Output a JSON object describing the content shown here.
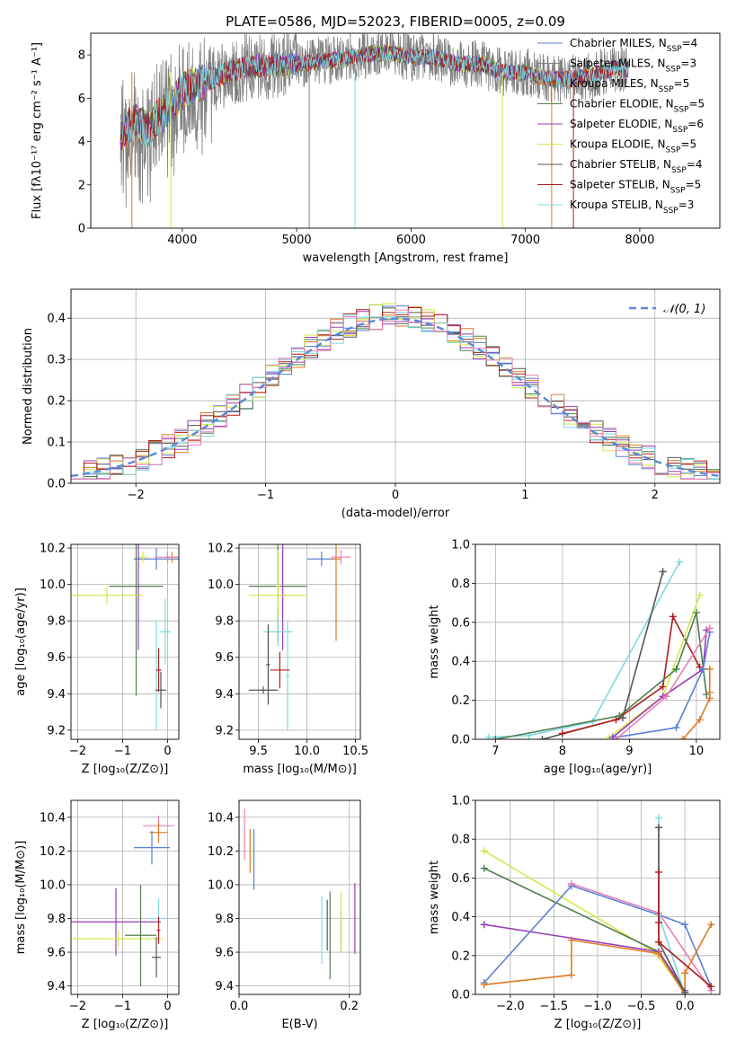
{
  "figure_title": "PLATE=0586, MJD=52023, FIBERID=0005, z=0.09",
  "palette": {
    "Chabrier MILES": "#5b7fd6",
    "Salpeter MILES": "#808080",
    "Kroupa MILES": "#e07b25",
    "Chabrier ELODIE": "#4f7f4f",
    "Salpeter ELODIE": "#9a3cb8",
    "Kroupa ELODIE": "#d2ea4a",
    "Chabrier STELIB": "#555555",
    "Salpeter STELIB": "#b01c1c",
    "Kroupa STELIB": "#7fd8e2",
    "extra_pink": "#e77fb5",
    "normal_curve": "#5b8ad6"
  },
  "chart_data": [
    {
      "id": "spectrum",
      "type": "line",
      "xlabel": "wavelength [Angstrom, rest frame]",
      "ylabel": "Flux [fλ10⁻¹⁷ erg cm⁻² s⁻¹ A⁻¹]",
      "xlim": [
        3200,
        8700
      ],
      "ylim": [
        0,
        9
      ],
      "xticks": [
        4000,
        5000,
        6000,
        7000,
        8000
      ],
      "yticks": [
        0,
        2,
        4,
        6,
        8
      ],
      "legend_position": "top-right",
      "continuum": {
        "x": [
          3460,
          3500,
          3600,
          3700,
          3800,
          3900,
          4000,
          4100,
          4200,
          4400,
          4600,
          4800,
          5000,
          5200,
          5400,
          5600,
          5800,
          6000,
          6200,
          6400,
          6600,
          6800,
          7000,
          7200,
          7400,
          7600,
          7800,
          7900
        ],
        "y": [
          4.3,
          4.6,
          4.9,
          4.5,
          5.2,
          5.6,
          6.3,
          6.6,
          6.8,
          7.2,
          7.5,
          7.5,
          7.6,
          7.7,
          7.8,
          8.0,
          8.1,
          7.9,
          7.9,
          7.6,
          7.6,
          7.2,
          7.2,
          6.9,
          6.9,
          7.1,
          7.4,
          7.3
        ]
      },
      "series": [
        {
          "name": "Chabrier MILES, N_SSP=4",
          "label_main": "Chabrier MILES, N",
          "label_sub": "SSP",
          "label_tail": "=4"
        },
        {
          "name": "Salpeter MILES, N_SSP=3",
          "label_main": "Salpeter MILES, N",
          "label_sub": "SSP",
          "label_tail": "=3"
        },
        {
          "name": "Kroupa MILES, N_SSP=5",
          "label_main": "Kroupa MILES, N",
          "label_sub": "SSP",
          "label_tail": "=5"
        },
        {
          "name": "Chabrier ELODIE, N_SSP=5",
          "label_main": "Chabrier ELODIE, N",
          "label_sub": "SSP",
          "label_tail": "=5"
        },
        {
          "name": "Salpeter ELODIE, N_SSP=6",
          "label_main": "Salpeter ELODIE, N",
          "label_sub": "SSP",
          "label_tail": "=6"
        },
        {
          "name": "Kroupa ELODIE, N_SSP=5",
          "label_main": "Kroupa ELODIE, N",
          "label_sub": "SSP",
          "label_tail": "=5"
        },
        {
          "name": "Chabrier STELIB, N_SSP=4",
          "label_main": "Chabrier STELIB, N",
          "label_sub": "SSP",
          "label_tail": "=4"
        },
        {
          "name": "Salpeter STELIB, N_SSP=5",
          "label_main": "Salpeter STELIB, N",
          "label_sub": "SSP",
          "label_tail": "=5"
        },
        {
          "name": "Kroupa STELIB, N_SSP=3",
          "label_main": "Kroupa STELIB, N",
          "label_sub": "SSP",
          "label_tail": "=3"
        }
      ]
    },
    {
      "id": "residuals",
      "type": "line",
      "xlabel": "(data-model)/error",
      "ylabel": "Normed distribution",
      "xlim": [
        -2.5,
        2.5
      ],
      "ylim": [
        0,
        0.47
      ],
      "xticks": [
        -2,
        -1,
        0,
        1,
        2
      ],
      "xticklabels": [
        "−2",
        "−1",
        "0",
        "1",
        "2"
      ],
      "yticks": [
        0.0,
        0.1,
        0.2,
        0.3,
        0.4
      ],
      "yticklabels": [
        "0.0",
        "0.1",
        "0.2",
        "0.3",
        "0.4"
      ],
      "grid": true,
      "legend_position": "top-right",
      "normal_label": "𝒩(0, 1)",
      "bin_width": 0.1
    },
    {
      "id": "age_vs_Z",
      "type": "scatter",
      "xlabel": "Z [log₁₀(Z/Z⊙)]",
      "ylabel": "age  [log₁₀(age/yr)]",
      "xlim": [
        -2.15,
        0.25
      ],
      "ylim": [
        9.15,
        10.22
      ],
      "xticks": [
        -2,
        -1,
        0
      ],
      "xticklabels": [
        "−2",
        "−1",
        "0"
      ],
      "yticks": [
        9.2,
        9.4,
        9.6,
        9.8,
        10.0,
        10.2
      ],
      "yticklabels": [
        "9.2",
        "9.4",
        "9.6",
        "9.8",
        "10.0",
        "10.2"
      ],
      "grid": true,
      "points": [
        {
          "c": "Chabrier MILES",
          "x": -0.25,
          "xerr": 0.5,
          "y": 10.14,
          "yerr": 0.06
        },
        {
          "c": "Kroupa MILES",
          "x": 0.1,
          "xerr": 0.15,
          "y": 10.15,
          "yerr": 0.03
        },
        {
          "c": "extra_pink",
          "x": 0.0,
          "xerr": 0.3,
          "y": 10.15,
          "yerr": 0.03
        },
        {
          "c": "Kroupa ELODIE",
          "x": -0.55,
          "xerr": 0.1,
          "y": 10.15,
          "yerr": 0.03
        },
        {
          "c": "Chabrier ELODIE",
          "x": -0.7,
          "xerr": 0.6,
          "y": 9.99,
          "yerr": 0.6
        },
        {
          "c": "Salpeter ELODIE",
          "x": -0.65,
          "xerr": 0.05,
          "y": 9.94,
          "yerr": 0.3
        },
        {
          "c": "Kroupa ELODIE",
          "x": -1.35,
          "xerr": 0.8,
          "y": 9.94,
          "yerr": 0.05
        },
        {
          "c": "Kroupa STELIB",
          "x": -0.05,
          "xerr": 0.12,
          "y": 9.74,
          "yerr": 0.18
        },
        {
          "c": "Kroupa STELIB",
          "x": -0.25,
          "xerr": 0.02,
          "y": 9.5,
          "yerr": 0.3
        },
        {
          "c": "Salpeter STELIB",
          "x": -0.2,
          "xerr": 0.06,
          "y": 9.53,
          "yerr": 0.12
        },
        {
          "c": "Chabrier STELIB",
          "x": -0.15,
          "xerr": 0.12,
          "y": 9.42,
          "yerr": 0.1
        }
      ]
    },
    {
      "id": "age_vs_mass",
      "type": "scatter",
      "xlabel": "mass [log₁₀(M/M⊙)]",
      "xlim": [
        9.3,
        10.55
      ],
      "ylim": [
        9.15,
        10.22
      ],
      "xticks": [
        9.5,
        10.0,
        10.5
      ],
      "xticklabels": [
        "9.5",
        "10.0",
        "10.5"
      ],
      "yticks": [
        9.2,
        9.4,
        9.6,
        9.8,
        10.0,
        10.2
      ],
      "yticklabels": [
        "9.2",
        "9.4",
        "9.6",
        "9.8",
        "10.0",
        "10.2"
      ],
      "grid": true,
      "points": [
        {
          "c": "Chabrier MILES",
          "x": 10.15,
          "xerr": 0.15,
          "y": 10.14,
          "yerr": 0.04
        },
        {
          "c": "Kroupa MILES",
          "x": 10.3,
          "xerr": 0.05,
          "y": 10.14,
          "yerr": 0.45
        },
        {
          "c": "extra_pink",
          "x": 10.35,
          "xerr": 0.1,
          "y": 10.15,
          "yerr": 0.04
        },
        {
          "c": "Chabrier ELODIE",
          "x": 9.7,
          "xerr": 0.3,
          "y": 9.99,
          "yerr": 0.3
        },
        {
          "c": "Salpeter ELODIE",
          "x": 9.75,
          "xerr": 0.04,
          "y": 9.94,
          "yerr": 0.3
        },
        {
          "c": "Kroupa ELODIE",
          "x": 9.7,
          "xerr": 0.3,
          "y": 9.94,
          "yerr": 0.05
        },
        {
          "c": "Kroupa ELODIE",
          "x": 9.7,
          "xerr": 0.02,
          "y": 9.99,
          "yerr": 0.2
        },
        {
          "c": "Kroupa STELIB",
          "x": 9.7,
          "xerr": 0.15,
          "y": 9.74,
          "yerr": 0.08
        },
        {
          "c": "Kroupa STELIB",
          "x": 9.8,
          "xerr": 0.02,
          "y": 9.5,
          "yerr": 0.3
        },
        {
          "c": "Salpeter STELIB",
          "x": 9.72,
          "xerr": 0.1,
          "y": 9.53,
          "yerr": 0.1
        },
        {
          "c": "Chabrier STELIB",
          "x": 9.55,
          "xerr": 0.15,
          "y": 9.42,
          "yerr": 0.02
        },
        {
          "c": "Chabrier STELIB",
          "x": 9.6,
          "xerr": 0.02,
          "y": 9.56,
          "yerr": 0.22
        }
      ]
    },
    {
      "id": "mass_weight_vs_age",
      "type": "line",
      "xlabel": "age  [log₁₀(age/yr)]",
      "ylabel": "mass weight",
      "xlim": [
        6.7,
        10.35
      ],
      "ylim": [
        0,
        1
      ],
      "xticks": [
        7,
        8,
        9,
        10
      ],
      "yticks": [
        0.0,
        0.2,
        0.4,
        0.6,
        0.8,
        1.0
      ],
      "yticklabels": [
        "0.0",
        "0.2",
        "0.4",
        "0.6",
        "0.8",
        "1.0"
      ],
      "grid": true,
      "series": [
        {
          "c": "Kroupa STELIB",
          "x": [
            6.9,
            7.5,
            8.45,
            9.75
          ],
          "y": [
            0.01,
            0.02,
            0.09,
            0.91
          ]
        },
        {
          "c": "Chabrier STELIB",
          "x": [
            7.7,
            8.9,
            9.5
          ],
          "y": [
            0.0,
            0.11,
            0.86
          ]
        },
        {
          "c": "Salpeter STELIB",
          "x": [
            8.0,
            8.8,
            9.5,
            9.65,
            10.05
          ],
          "y": [
            0.03,
            0.1,
            0.27,
            0.63,
            0.37
          ]
        },
        {
          "c": "Kroupa ELODIE",
          "x": [
            8.7,
            9.5,
            10.05
          ],
          "y": [
            0.01,
            0.22,
            0.74
          ]
        },
        {
          "c": "Chabrier ELODIE",
          "x": [
            7.0,
            8.85,
            9.7,
            10.0,
            10.15
          ],
          "y": [
            0.0,
            0.12,
            0.36,
            0.65,
            0.23
          ]
        },
        {
          "c": "Salpeter ELODIE",
          "x": [
            8.75,
            9.5,
            10.1,
            10.15
          ],
          "y": [
            0.01,
            0.22,
            0.36,
            0.56
          ]
        },
        {
          "c": "Chabrier MILES",
          "x": [
            8.8,
            9.7,
            10.1,
            10.2
          ],
          "y": [
            0.01,
            0.06,
            0.36,
            0.55
          ]
        },
        {
          "c": "Kroupa MILES",
          "x": [
            9.8,
            10.05,
            10.2,
            10.2,
            10.2
          ],
          "y": [
            0.0,
            0.1,
            0.21,
            0.24,
            0.36
          ]
        },
        {
          "c": "extra_pink",
          "x": [
            8.8,
            9.55,
            10.2
          ],
          "y": [
            0.0,
            0.22,
            0.57
          ]
        }
      ]
    },
    {
      "id": "mass_vs_Z",
      "type": "scatter",
      "xlabel": "Z [log₁₀(Z/Z⊙)]",
      "ylabel": "mass [log₁₀(M/M⊙)]",
      "xlim": [
        -2.15,
        0.25
      ],
      "ylim": [
        9.35,
        10.5
      ],
      "xticks": [
        -2,
        -1,
        0
      ],
      "xticklabels": [
        "−2",
        "−1",
        "0"
      ],
      "yticks": [
        9.4,
        9.6,
        9.8,
        10.0,
        10.2,
        10.4
      ],
      "yticklabels": [
        "9.4",
        "9.6",
        "9.8",
        "10.0",
        "10.2",
        "10.4"
      ],
      "grid": true,
      "points": [
        {
          "c": "extra_pink",
          "x": -0.2,
          "xerr": 0.35,
          "y": 10.35,
          "yerr": 0.06
        },
        {
          "c": "Kroupa MILES",
          "x": -0.2,
          "xerr": 0.2,
          "y": 10.31,
          "yerr": 0.06
        },
        {
          "c": "Chabrier MILES",
          "x": -0.35,
          "xerr": 0.4,
          "y": 10.22,
          "yerr": 0.1
        },
        {
          "c": "Salpeter ELODIE",
          "x": -1.15,
          "xerr": 1.0,
          "y": 9.78,
          "yerr": 0.2
        },
        {
          "c": "Kroupa ELODIE",
          "x": -1.1,
          "xerr": 1.0,
          "y": 9.68,
          "yerr": 0.05
        },
        {
          "c": "Chabrier ELODIE",
          "x": -0.6,
          "xerr": 0.35,
          "y": 9.7,
          "yerr": 0.3
        },
        {
          "c": "Kroupa STELIB",
          "x": -0.2,
          "xerr": 0.2,
          "y": 9.8,
          "yerr": 0.12
        },
        {
          "c": "Salpeter STELIB",
          "x": -0.2,
          "xerr": 0.04,
          "y": 9.73,
          "yerr": 0.08
        },
        {
          "c": "Chabrier STELIB",
          "x": -0.25,
          "xerr": 0.1,
          "y": 9.57,
          "yerr": 0.12
        }
      ]
    },
    {
      "id": "mass_vs_ebv",
      "type": "scatter",
      "xlabel": "E(B-V)",
      "xlim": [
        0,
        0.22
      ],
      "ylim": [
        9.35,
        10.5
      ],
      "xticks": [
        0.0,
        0.2
      ],
      "xticklabels": [
        "0.0",
        "0.2"
      ],
      "yticks": [
        9.4,
        9.6,
        9.8,
        10.0,
        10.2,
        10.4
      ],
      "yticklabels": [
        "9.4",
        "9.6",
        "9.8",
        "10.0",
        "10.2",
        "10.4"
      ],
      "grid": true,
      "points": [
        {
          "c": "extra_pink",
          "x": 0.01,
          "xerr": 0,
          "y": 10.3,
          "yerr": 0.15
        },
        {
          "c": "Kroupa MILES",
          "x": 0.02,
          "xerr": 0,
          "y": 10.2,
          "yerr": 0.13
        },
        {
          "c": "Chabrier MILES",
          "x": 0.027,
          "xerr": 0,
          "y": 10.15,
          "yerr": 0.18
        },
        {
          "c": "Kroupa STELIB",
          "x": 0.15,
          "xerr": 0,
          "y": 9.73,
          "yerr": 0.2
        },
        {
          "c": "Chabrier STELIB",
          "x": 0.16,
          "xerr": 0,
          "y": 9.76,
          "yerr": 0.15
        },
        {
          "c": "Chabrier ELODIE",
          "x": 0.165,
          "xerr": 0,
          "y": 9.7,
          "yerr": 0.26
        },
        {
          "c": "Salpeter STELIB",
          "x": 0.185,
          "xerr": 0,
          "y": 9.72,
          "yerr": 0.12
        },
        {
          "c": "Kroupa ELODIE",
          "x": 0.185,
          "xerr": 0,
          "y": 9.78,
          "yerr": 0.18
        },
        {
          "c": "Salpeter ELODIE",
          "x": 0.21,
          "xerr": 0,
          "y": 9.8,
          "yerr": 0.21
        }
      ]
    },
    {
      "id": "mass_weight_vs_Z",
      "type": "line",
      "xlabel": "Z [log₁₀(Z/Z⊙)]",
      "ylabel": "mass weight",
      "xlim": [
        -2.4,
        0.4
      ],
      "ylim": [
        0,
        1
      ],
      "xticks": [
        -2.0,
        -1.5,
        -1.0,
        -0.5,
        0.0
      ],
      "xticklabels": [
        "−2.0",
        "−1.5",
        "−1.0",
        "−0.5",
        "0.0"
      ],
      "yticks": [
        0.0,
        0.2,
        0.4,
        0.6,
        0.8,
        1.0
      ],
      "yticklabels": [
        "0.0",
        "0.2",
        "0.4",
        "0.6",
        "0.8",
        "1.0"
      ],
      "grid": true,
      "series": [
        {
          "c": "Kroupa ELODIE",
          "x": [
            -2.3,
            -0.35,
            0.0
          ],
          "y": [
            0.74,
            0.22,
            0.01
          ]
        },
        {
          "c": "Chabrier ELODIE",
          "x": [
            -2.3,
            -0.3,
            0.0
          ],
          "y": [
            0.65,
            0.22,
            0.01
          ]
        },
        {
          "c": "Salpeter ELODIE",
          "x": [
            -2.3,
            -0.3,
            0.0
          ],
          "y": [
            0.36,
            0.22,
            0.02
          ]
        },
        {
          "c": "Chabrier MILES",
          "x": [
            -2.3,
            -1.3,
            -0.3,
            0.0,
            0.3
          ],
          "y": [
            0.06,
            0.56,
            0.41,
            0.36,
            0.04
          ]
        },
        {
          "c": "extra_pink",
          "x": [
            -1.3,
            -0.3,
            0.3
          ],
          "y": [
            0.57,
            0.42,
            0.02
          ]
        },
        {
          "c": "Kroupa MILES",
          "x": [
            -2.3,
            -1.3,
            -1.3,
            -0.3,
            0.0,
            0.0,
            0.3
          ],
          "y": [
            0.05,
            0.1,
            0.28,
            0.21,
            0.0,
            0.11,
            0.36
          ]
        },
        {
          "c": "Kroupa STELIB",
          "x": [
            -0.3,
            -0.3,
            0.0
          ],
          "y": [
            0.91,
            0.41,
            0.0
          ]
        },
        {
          "c": "Chabrier STELIB",
          "x": [
            -0.3,
            -0.3,
            0.0
          ],
          "y": [
            0.86,
            0.27,
            0.01
          ]
        },
        {
          "c": "Salpeter STELIB",
          "x": [
            -0.3,
            -0.3,
            -0.3,
            0.3
          ],
          "y": [
            0.63,
            0.37,
            0.27,
            0.04
          ]
        }
      ]
    }
  ]
}
